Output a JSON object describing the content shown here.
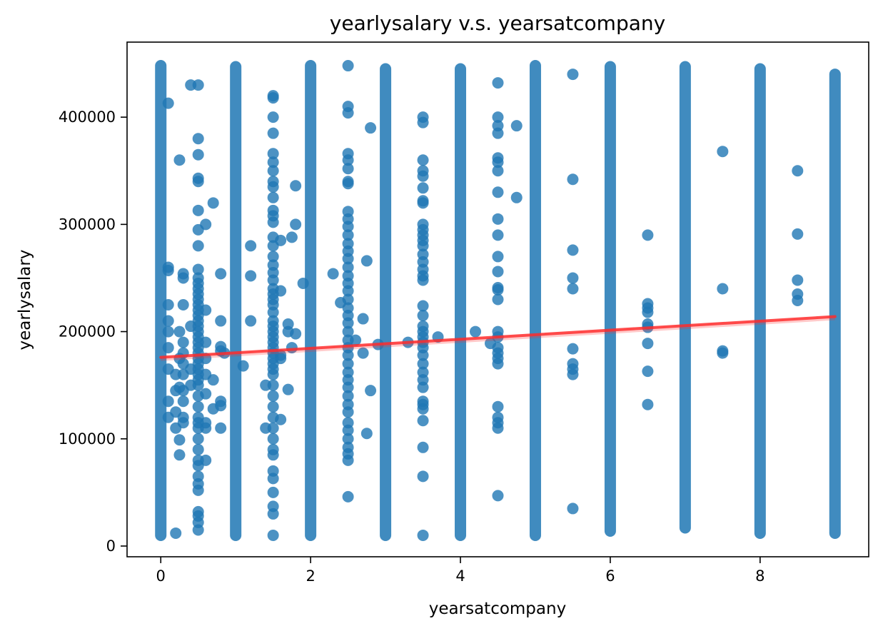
{
  "chart_data": {
    "type": "scatter",
    "title": "yearlysalary v.s. yearsatcompany",
    "xlabel": "yearsatcompany",
    "ylabel": "yearlysalary",
    "xlim": [
      -0.45,
      9.45
    ],
    "ylim": [
      -10000,
      470000
    ],
    "xticks": [
      0,
      2,
      4,
      6,
      8
    ],
    "yticks": [
      0,
      100000,
      200000,
      300000,
      400000
    ],
    "grid": false,
    "colors": {
      "points": "#1f77b4",
      "trend": "#ff2a2a"
    },
    "columns": [
      {
        "x": 0,
        "ymin": 10000,
        "ymax": 448000
      },
      {
        "x": 1,
        "ymin": 10000,
        "ymax": 447000
      },
      {
        "x": 2,
        "ymin": 10000,
        "ymax": 448000
      },
      {
        "x": 3,
        "ymin": 10000,
        "ymax": 445000
      },
      {
        "x": 4,
        "ymin": 10000,
        "ymax": 445000
      },
      {
        "x": 5,
        "ymin": 10000,
        "ymax": 448000
      },
      {
        "x": 6,
        "ymin": 14000,
        "ymax": 447000
      },
      {
        "x": 7,
        "ymin": 17000,
        "ymax": 447000
      },
      {
        "x": 8,
        "ymin": 12000,
        "ymax": 445000
      },
      {
        "x": 9,
        "ymin": 12000,
        "ymax": 440000
      }
    ],
    "points": [
      [
        0.1,
        413000
      ],
      [
        0.1,
        260000
      ],
      [
        0.1,
        257000
      ],
      [
        0.1,
        225000
      ],
      [
        0.1,
        210000
      ],
      [
        0.1,
        200000
      ],
      [
        0.1,
        185000
      ],
      [
        0.1,
        165000
      ],
      [
        0.1,
        135000
      ],
      [
        0.1,
        120000
      ],
      [
        0.2,
        160000
      ],
      [
        0.2,
        145000
      ],
      [
        0.2,
        125000
      ],
      [
        0.2,
        110000
      ],
      [
        0.2,
        12000
      ],
      [
        0.25,
        360000
      ],
      [
        0.25,
        200000
      ],
      [
        0.25,
        175000
      ],
      [
        0.25,
        148000
      ],
      [
        0.25,
        99000
      ],
      [
        0.25,
        85000
      ],
      [
        0.3,
        254000
      ],
      [
        0.3,
        250000
      ],
      [
        0.3,
        225000
      ],
      [
        0.3,
        190000
      ],
      [
        0.3,
        180000
      ],
      [
        0.3,
        170000
      ],
      [
        0.3,
        160000
      ],
      [
        0.3,
        145000
      ],
      [
        0.3,
        135000
      ],
      [
        0.3,
        120000
      ],
      [
        0.3,
        115000
      ],
      [
        0.4,
        430000
      ],
      [
        0.4,
        205000
      ],
      [
        0.4,
        165000
      ],
      [
        0.4,
        150000
      ],
      [
        0.5,
        430000
      ],
      [
        0.5,
        380000
      ],
      [
        0.5,
        365000
      ],
      [
        0.5,
        343000
      ],
      [
        0.5,
        340000
      ],
      [
        0.5,
        313000
      ],
      [
        0.5,
        295000
      ],
      [
        0.5,
        280000
      ],
      [
        0.5,
        258000
      ],
      [
        0.5,
        250000
      ],
      [
        0.5,
        245000
      ],
      [
        0.5,
        240000
      ],
      [
        0.5,
        235000
      ],
      [
        0.5,
        230000
      ],
      [
        0.5,
        225000
      ],
      [
        0.5,
        220000
      ],
      [
        0.5,
        215000
      ],
      [
        0.5,
        210000
      ],
      [
        0.5,
        205000
      ],
      [
        0.5,
        200000
      ],
      [
        0.5,
        195000
      ],
      [
        0.5,
        190000
      ],
      [
        0.5,
        185000
      ],
      [
        0.5,
        180000
      ],
      [
        0.5,
        175000
      ],
      [
        0.5,
        170000
      ],
      [
        0.5,
        165000
      ],
      [
        0.5,
        160000
      ],
      [
        0.5,
        155000
      ],
      [
        0.5,
        150000
      ],
      [
        0.5,
        140000
      ],
      [
        0.5,
        130000
      ],
      [
        0.5,
        120000
      ],
      [
        0.5,
        115000
      ],
      [
        0.5,
        110000
      ],
      [
        0.5,
        100000
      ],
      [
        0.5,
        90000
      ],
      [
        0.5,
        80000
      ],
      [
        0.5,
        75000
      ],
      [
        0.5,
        65000
      ],
      [
        0.5,
        58000
      ],
      [
        0.5,
        52000
      ],
      [
        0.5,
        32000
      ],
      [
        0.5,
        28000
      ],
      [
        0.5,
        22000
      ],
      [
        0.5,
        15000
      ],
      [
        0.6,
        300000
      ],
      [
        0.6,
        220000
      ],
      [
        0.6,
        190000
      ],
      [
        0.6,
        175000
      ],
      [
        0.6,
        160000
      ],
      [
        0.6,
        142000
      ],
      [
        0.6,
        115000
      ],
      [
        0.6,
        110000
      ],
      [
        0.6,
        80000
      ],
      [
        0.7,
        320000
      ],
      [
        0.7,
        155000
      ],
      [
        0.7,
        128000
      ],
      [
        0.8,
        254000
      ],
      [
        0.8,
        210000
      ],
      [
        0.8,
        186000
      ],
      [
        0.8,
        182000
      ],
      [
        0.8,
        135000
      ],
      [
        0.8,
        131000
      ],
      [
        0.8,
        110000
      ],
      [
        0.85,
        180000
      ],
      [
        1.1,
        168000
      ],
      [
        1.2,
        280000
      ],
      [
        1.2,
        252000
      ],
      [
        1.2,
        210000
      ],
      [
        1.4,
        150000
      ],
      [
        1.4,
        110000
      ],
      [
        1.5,
        420000
      ],
      [
        1.5,
        418000
      ],
      [
        1.5,
        400000
      ],
      [
        1.5,
        385000
      ],
      [
        1.5,
        366000
      ],
      [
        1.5,
        358000
      ],
      [
        1.5,
        350000
      ],
      [
        1.5,
        340000
      ],
      [
        1.5,
        335000
      ],
      [
        1.5,
        325000
      ],
      [
        1.5,
        313000
      ],
      [
        1.5,
        308000
      ],
      [
        1.5,
        302000
      ],
      [
        1.5,
        288000
      ],
      [
        1.5,
        280000
      ],
      [
        1.5,
        270000
      ],
      [
        1.5,
        262000
      ],
      [
        1.5,
        255000
      ],
      [
        1.5,
        248000
      ],
      [
        1.5,
        240000
      ],
      [
        1.5,
        235000
      ],
      [
        1.5,
        230000
      ],
      [
        1.5,
        225000
      ],
      [
        1.5,
        218000
      ],
      [
        1.5,
        210000
      ],
      [
        1.5,
        205000
      ],
      [
        1.5,
        200000
      ],
      [
        1.5,
        195000
      ],
      [
        1.5,
        190000
      ],
      [
        1.5,
        185000
      ],
      [
        1.5,
        180000
      ],
      [
        1.5,
        175000
      ],
      [
        1.5,
        170000
      ],
      [
        1.5,
        165000
      ],
      [
        1.5,
        160000
      ],
      [
        1.5,
        150000
      ],
      [
        1.5,
        140000
      ],
      [
        1.5,
        130000
      ],
      [
        1.5,
        120000
      ],
      [
        1.5,
        110000
      ],
      [
        1.5,
        100000
      ],
      [
        1.5,
        90000
      ],
      [
        1.5,
        85000
      ],
      [
        1.5,
        70000
      ],
      [
        1.5,
        63000
      ],
      [
        1.5,
        50000
      ],
      [
        1.5,
        37000
      ],
      [
        1.5,
        30000
      ],
      [
        1.5,
        10000
      ],
      [
        1.6,
        285000
      ],
      [
        1.6,
        238000
      ],
      [
        1.6,
        178000
      ],
      [
        1.6,
        175000
      ],
      [
        1.6,
        118000
      ],
      [
        1.7,
        200000
      ],
      [
        1.7,
        207000
      ],
      [
        1.7,
        146000
      ],
      [
        1.75,
        288000
      ],
      [
        1.75,
        185000
      ],
      [
        1.8,
        336000
      ],
      [
        1.8,
        300000
      ],
      [
        1.8,
        198000
      ],
      [
        1.9,
        245000
      ],
      [
        2.3,
        254000
      ],
      [
        2.4,
        227000
      ],
      [
        2.5,
        448000
      ],
      [
        2.5,
        410000
      ],
      [
        2.5,
        404000
      ],
      [
        2.5,
        366000
      ],
      [
        2.5,
        360000
      ],
      [
        2.5,
        352000
      ],
      [
        2.5,
        340000
      ],
      [
        2.5,
        338000
      ],
      [
        2.5,
        312000
      ],
      [
        2.5,
        305000
      ],
      [
        2.5,
        298000
      ],
      [
        2.5,
        290000
      ],
      [
        2.5,
        282000
      ],
      [
        2.5,
        275000
      ],
      [
        2.5,
        268000
      ],
      [
        2.5,
        260000
      ],
      [
        2.5,
        252000
      ],
      [
        2.5,
        245000
      ],
      [
        2.5,
        238000
      ],
      [
        2.5,
        230000
      ],
      [
        2.5,
        222000
      ],
      [
        2.5,
        215000
      ],
      [
        2.5,
        208000
      ],
      [
        2.5,
        200000
      ],
      [
        2.5,
        192000
      ],
      [
        2.5,
        185000
      ],
      [
        2.5,
        178000
      ],
      [
        2.5,
        170000
      ],
      [
        2.5,
        162000
      ],
      [
        2.5,
        155000
      ],
      [
        2.5,
        148000
      ],
      [
        2.5,
        140000
      ],
      [
        2.5,
        132000
      ],
      [
        2.5,
        125000
      ],
      [
        2.5,
        115000
      ],
      [
        2.5,
        108000
      ],
      [
        2.5,
        100000
      ],
      [
        2.5,
        92000
      ],
      [
        2.5,
        86000
      ],
      [
        2.5,
        80000
      ],
      [
        2.5,
        46000
      ],
      [
        2.6,
        192000
      ],
      [
        2.7,
        212000
      ],
      [
        2.7,
        180000
      ],
      [
        2.75,
        266000
      ],
      [
        2.75,
        105000
      ],
      [
        2.8,
        390000
      ],
      [
        2.8,
        145000
      ],
      [
        2.9,
        188000
      ],
      [
        3.3,
        190000
      ],
      [
        3.5,
        400000
      ],
      [
        3.5,
        395000
      ],
      [
        3.5,
        360000
      ],
      [
        3.5,
        350000
      ],
      [
        3.5,
        345000
      ],
      [
        3.5,
        334000
      ],
      [
        3.5,
        322000
      ],
      [
        3.5,
        320000
      ],
      [
        3.5,
        300000
      ],
      [
        3.5,
        295000
      ],
      [
        3.5,
        290000
      ],
      [
        3.5,
        285000
      ],
      [
        3.5,
        280000
      ],
      [
        3.5,
        272000
      ],
      [
        3.5,
        265000
      ],
      [
        3.5,
        258000
      ],
      [
        3.5,
        252000
      ],
      [
        3.5,
        248000
      ],
      [
        3.5,
        224000
      ],
      [
        3.5,
        215000
      ],
      [
        3.5,
        205000
      ],
      [
        3.5,
        200000
      ],
      [
        3.5,
        195000
      ],
      [
        3.5,
        190000
      ],
      [
        3.5,
        185000
      ],
      [
        3.5,
        178000
      ],
      [
        3.5,
        170000
      ],
      [
        3.5,
        162000
      ],
      [
        3.5,
        155000
      ],
      [
        3.5,
        148000
      ],
      [
        3.5,
        135000
      ],
      [
        3.5,
        132000
      ],
      [
        3.5,
        128000
      ],
      [
        3.5,
        117000
      ],
      [
        3.5,
        92000
      ],
      [
        3.5,
        65000
      ],
      [
        3.5,
        10000
      ],
      [
        3.7,
        195000
      ],
      [
        4.2,
        200000
      ],
      [
        4.4,
        189000
      ],
      [
        4.5,
        432000
      ],
      [
        4.5,
        400000
      ],
      [
        4.5,
        392000
      ],
      [
        4.5,
        385000
      ],
      [
        4.5,
        362000
      ],
      [
        4.5,
        358000
      ],
      [
        4.5,
        350000
      ],
      [
        4.5,
        330000
      ],
      [
        4.5,
        305000
      ],
      [
        4.5,
        290000
      ],
      [
        4.5,
        270000
      ],
      [
        4.5,
        256000
      ],
      [
        4.5,
        241000
      ],
      [
        4.5,
        239000
      ],
      [
        4.5,
        230000
      ],
      [
        4.5,
        200000
      ],
      [
        4.5,
        195000
      ],
      [
        4.5,
        185000
      ],
      [
        4.5,
        180000
      ],
      [
        4.5,
        175000
      ],
      [
        4.5,
        170000
      ],
      [
        4.5,
        130000
      ],
      [
        4.5,
        120000
      ],
      [
        4.5,
        115000
      ],
      [
        4.5,
        110000
      ],
      [
        4.5,
        47000
      ],
      [
        4.75,
        392000
      ],
      [
        4.75,
        325000
      ],
      [
        5.5,
        440000
      ],
      [
        5.5,
        342000
      ],
      [
        5.5,
        276000
      ],
      [
        5.5,
        250000
      ],
      [
        5.5,
        240000
      ],
      [
        5.5,
        184000
      ],
      [
        5.5,
        170000
      ],
      [
        5.5,
        165000
      ],
      [
        5.5,
        160000
      ],
      [
        5.5,
        35000
      ],
      [
        6.5,
        290000
      ],
      [
        6.5,
        226000
      ],
      [
        6.5,
        222000
      ],
      [
        6.5,
        218000
      ],
      [
        6.5,
        207000
      ],
      [
        6.5,
        204000
      ],
      [
        6.5,
        189000
      ],
      [
        6.5,
        163000
      ],
      [
        6.5,
        132000
      ],
      [
        7.5,
        368000
      ],
      [
        7.5,
        240000
      ],
      [
        7.5,
        182000
      ],
      [
        7.5,
        180000
      ],
      [
        8.5,
        350000
      ],
      [
        8.5,
        291000
      ],
      [
        8.5,
        248000
      ],
      [
        8.5,
        235000
      ],
      [
        8.5,
        229000
      ]
    ],
    "trend_line": {
      "x": [
        0,
        9
      ],
      "y": [
        176000,
        214000
      ]
    }
  }
}
